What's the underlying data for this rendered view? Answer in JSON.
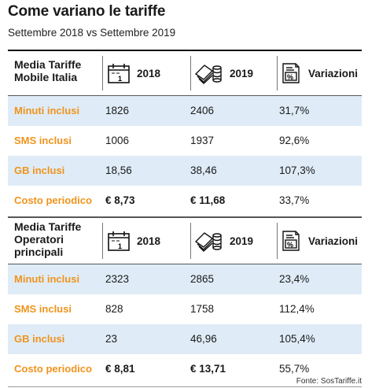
{
  "title": "Come variano le tariffe",
  "subtitle": "Settembre 2018 vs Settembre 2019",
  "accent_color": "#f0931c",
  "shade_color": "#dfecf7",
  "sections": [
    {
      "header": {
        "label_line1": "Media Tariffe",
        "label_line2": "Mobile Italia",
        "label_line3": "",
        "col_2018": "2018",
        "col_2019": "2019",
        "col_var": "Variazioni",
        "icons": [
          "calendar-icon",
          "money-stack-icon",
          "percent-document-icon"
        ]
      },
      "rows": [
        {
          "label": "Minuti inclusi",
          "v2018": "1826",
          "v2019": "2406",
          "var": "31,7%"
        },
        {
          "label": "SMS inclusi",
          "v2018": "1006",
          "v2019": "1937",
          "var": "92,6%"
        },
        {
          "label": "GB inclusi",
          "v2018": "18,56",
          "v2019": "38,46",
          "var": "107,3%"
        },
        {
          "label": "Costo periodico",
          "v2018": "€ 8,73",
          "v2019": "€ 11,68",
          "var": "33,7%"
        }
      ]
    },
    {
      "header": {
        "label_line1": "Media Tariffe",
        "label_line2": "Operatori",
        "label_line3": "principali",
        "col_2018": "2018",
        "col_2019": "2019",
        "col_var": "Variazioni",
        "icons": [
          "calendar-icon",
          "money-stack-icon",
          "percent-document-icon"
        ]
      },
      "rows": [
        {
          "label": "Minuti inclusi",
          "v2018": "2323",
          "v2019": "2865",
          "var": "23,4%"
        },
        {
          "label": "SMS inclusi",
          "v2018": "828",
          "v2019": "1758",
          "var": "112,4%"
        },
        {
          "label": "GB inclusi",
          "v2018": "23",
          "v2019": "46,96",
          "var": "105,4%"
        },
        {
          "label": "Costo periodico",
          "v2018": "€ 8,81",
          "v2019": "€ 13,71",
          "var": "55,7%"
        }
      ]
    }
  ],
  "source": "Fonte: SosTariffe.it"
}
